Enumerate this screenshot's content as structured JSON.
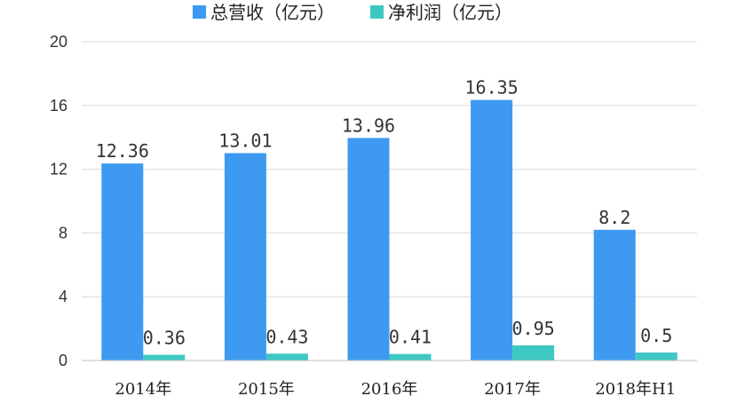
{
  "chart_data": {
    "type": "bar",
    "categories": [
      "2014年",
      "2015年",
      "2016年",
      "2017年",
      "2018年H1"
    ],
    "series": [
      {
        "name": "总营收（亿元）",
        "values": [
          12.36,
          13.01,
          13.96,
          16.35,
          8.2
        ],
        "labels": [
          "12.36",
          "13.01",
          "13.96",
          "16.35",
          "8.2"
        ],
        "color": "#3d9af0"
      },
      {
        "name": "净利润（亿元）",
        "values": [
          0.36,
          0.43,
          0.41,
          0.95,
          0.5
        ],
        "labels": [
          "0.36",
          "0.43",
          "0.41",
          "0.95",
          "0.5"
        ],
        "color": "#3ec8c3"
      }
    ],
    "ylim": [
      0,
      20
    ],
    "yticks": [
      "0",
      "4",
      "8",
      "12",
      "16",
      "20"
    ],
    "grid": true,
    "legend_position": "top-center"
  }
}
